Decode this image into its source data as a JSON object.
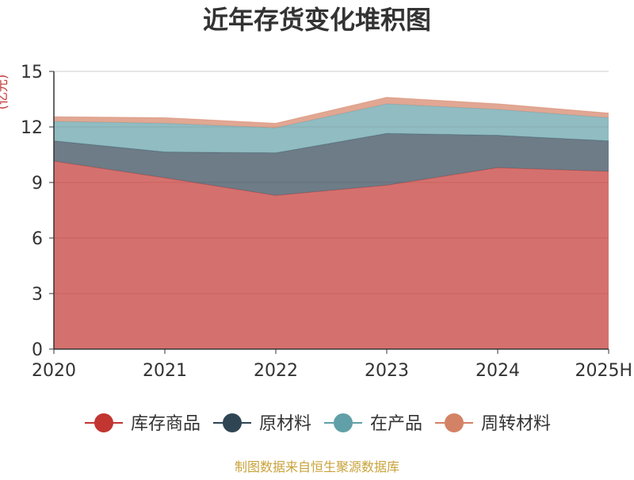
{
  "chart_data": {
    "type": "area",
    "stacked": true,
    "title": "近年存货变化堆积图",
    "ylabel": "(亿元)",
    "categories": [
      "2020",
      "2021",
      "2022",
      "2023",
      "2024",
      "2025H"
    ],
    "ylim": [
      0,
      15
    ],
    "yticks": [
      "0",
      "3",
      "6",
      "9",
      "12",
      "15"
    ],
    "grid": true,
    "legend_position": "bottom",
    "series": [
      {
        "name": "库存商品",
        "color": "#c23531",
        "values": [
          10.15,
          9.25,
          8.3,
          8.85,
          9.8,
          9.6
        ]
      },
      {
        "name": "原材料",
        "color": "#2f4554",
        "values": [
          1.1,
          1.4,
          2.3,
          2.8,
          1.75,
          1.65
        ]
      },
      {
        "name": "在产品",
        "color": "#61a0a8",
        "values": [
          1.05,
          1.55,
          1.35,
          1.6,
          1.4,
          1.25
        ]
      },
      {
        "name": "周转材料",
        "color": "#d48265",
        "values": [
          0.25,
          0.3,
          0.25,
          0.35,
          0.3,
          0.25
        ]
      }
    ]
  },
  "footer": {
    "source": "制图数据来自恒生聚源数据库"
  }
}
